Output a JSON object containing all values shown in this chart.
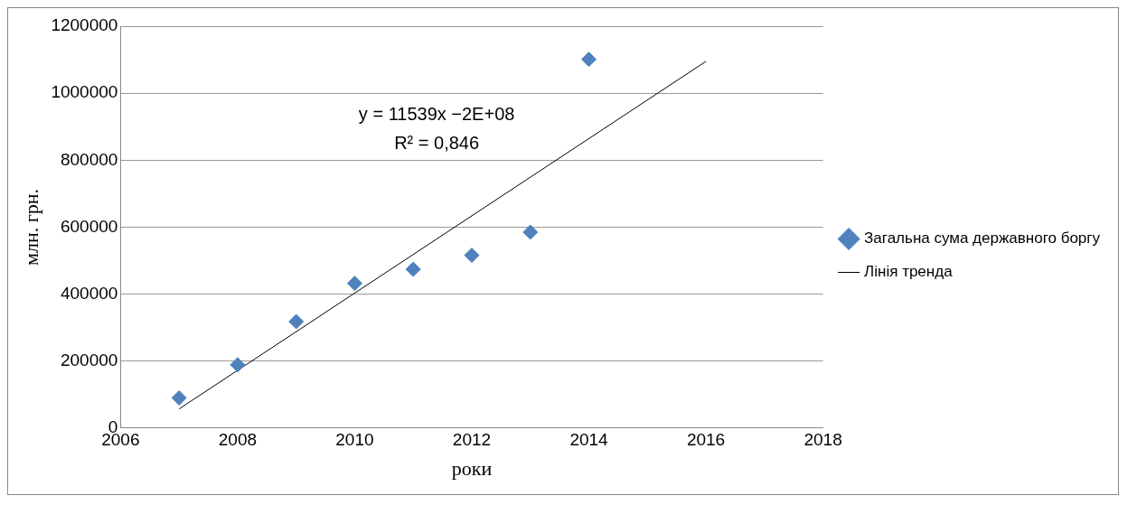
{
  "chart_data": {
    "type": "scatter",
    "xlabel": "роки",
    "ylabel": "млн. грн.",
    "x": [
      2007,
      2008,
      2009,
      2010,
      2011,
      2012,
      2013,
      2014
    ],
    "series": [
      {
        "name": "Загальна сума державного боргу",
        "type": "scatter",
        "color": "#4f81bd",
        "marker": "diamond",
        "values": [
          90000,
          189000,
          318000,
          432000,
          474000,
          516000,
          585000,
          1101000
        ]
      },
      {
        "name": "Лінія тренда",
        "type": "line",
        "color": "#000000",
        "marker": "none",
        "x": [
          2007,
          2016
        ],
        "values": [
          57000,
          1095000
        ]
      }
    ],
    "xlim": [
      2006,
      2018
    ],
    "xticks": [
      2006,
      2008,
      2010,
      2012,
      2014,
      2016,
      2018
    ],
    "ylim": [
      0,
      1200000
    ],
    "yticks": [
      0,
      200000,
      400000,
      600000,
      800000,
      1000000,
      1200000
    ],
    "grid": "y",
    "legend": "right",
    "annotations": [
      "y = 11539x −2E+08",
      "R² = 0,846"
    ]
  }
}
